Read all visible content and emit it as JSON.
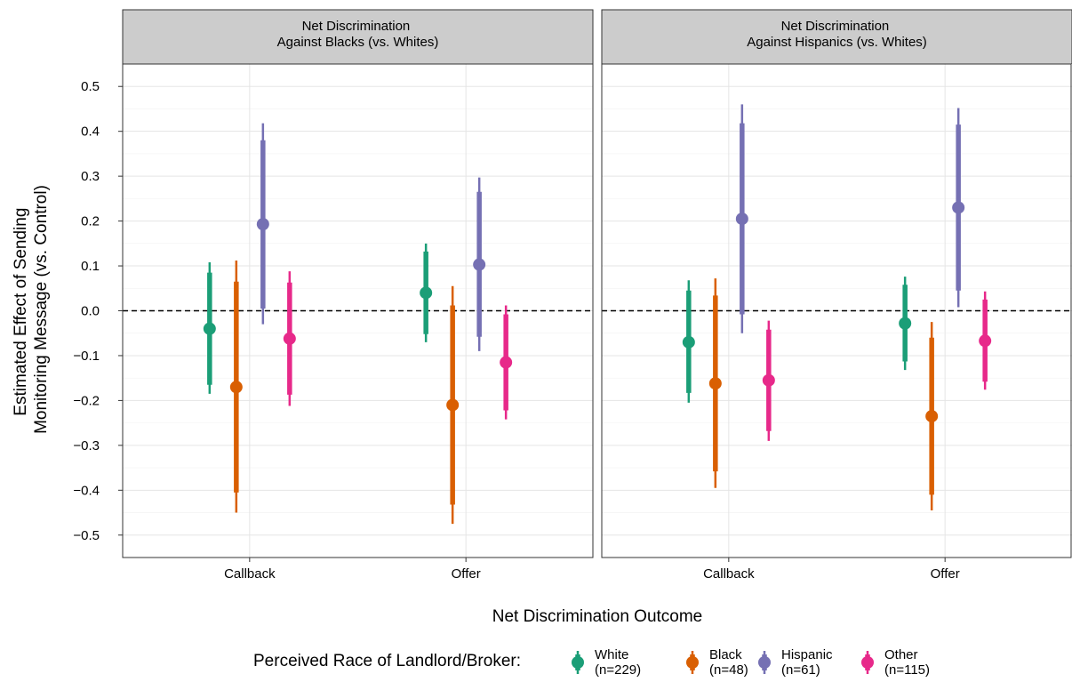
{
  "chart_data": {
    "type": "scatter",
    "ylabel_line1": "Estimated Effect of Sending",
    "ylabel_line2": "Monitoring Message (vs. Control)",
    "xlabel": "Net Discrimination Outcome",
    "ylim": [
      -0.55,
      0.55
    ],
    "yticks": [
      "0.5",
      "0.4",
      "0.3",
      "0.2",
      "0.1",
      "0.0",
      "−0.1",
      "−0.2",
      "−0.3",
      "−0.4",
      "−0.5"
    ],
    "ytick_values": [
      0.5,
      0.4,
      0.3,
      0.2,
      0.1,
      0.0,
      -0.1,
      -0.2,
      -0.3,
      -0.4,
      -0.5
    ],
    "categories": [
      "Callback",
      "Offer"
    ],
    "reference_line": 0,
    "grid": true,
    "legend": {
      "position": "bottom",
      "title": "Perceived Race of Landlord/Broker:",
      "items": [
        {
          "line1": "White",
          "line2": "(n=229)",
          "color": "#1b9e77"
        },
        {
          "line1": "Black",
          "line2": "(n=48)",
          "color": "#d95f02"
        },
        {
          "line1": "Hispanic",
          "line2": "(n=61)",
          "color": "#7570b3"
        },
        {
          "line1": "Other",
          "line2": "(n=115)",
          "color": "#e7298a"
        }
      ]
    },
    "panels": [
      {
        "title_line1": "Net Discrimination",
        "title_line2": "Against Blacks (vs. Whites)",
        "series": [
          {
            "color": "#1b9e77",
            "points": [
              {
                "category": "Callback",
                "estimate": -0.04,
                "ci90": [
                  -0.165,
                  0.085
                ],
                "ci95": [
                  -0.185,
                  0.108
                ]
              },
              {
                "category": "Offer",
                "estimate": 0.04,
                "ci90": [
                  -0.052,
                  0.132
                ],
                "ci95": [
                  -0.07,
                  0.15
                ]
              }
            ]
          },
          {
            "color": "#d95f02",
            "points": [
              {
                "category": "Callback",
                "estimate": -0.17,
                "ci90": [
                  -0.405,
                  0.065
                ],
                "ci95": [
                  -0.45,
                  0.112
                ]
              },
              {
                "category": "Offer",
                "estimate": -0.21,
                "ci90": [
                  -0.432,
                  0.012
                ],
                "ci95": [
                  -0.475,
                  0.055
                ]
              }
            ]
          },
          {
            "color": "#7570b3",
            "points": [
              {
                "category": "Callback",
                "estimate": 0.193,
                "ci90": [
                  0.005,
                  0.38
                ],
                "ci95": [
                  -0.03,
                  0.418
                ]
              },
              {
                "category": "Offer",
                "estimate": 0.103,
                "ci90": [
                  -0.058,
                  0.265
                ],
                "ci95": [
                  -0.09,
                  0.297
                ]
              }
            ]
          },
          {
            "color": "#e7298a",
            "points": [
              {
                "category": "Callback",
                "estimate": -0.062,
                "ci90": [
                  -0.187,
                  0.063
                ],
                "ci95": [
                  -0.212,
                  0.088
                ]
              },
              {
                "category": "Offer",
                "estimate": -0.115,
                "ci90": [
                  -0.222,
                  -0.008
                ],
                "ci95": [
                  -0.242,
                  0.012
                ]
              }
            ]
          }
        ]
      },
      {
        "title_line1": "Net Discrimination",
        "title_line2": "Against Hispanics (vs. Whites)",
        "series": [
          {
            "color": "#1b9e77",
            "points": [
              {
                "category": "Callback",
                "estimate": -0.07,
                "ci90": [
                  -0.183,
                  0.045
                ],
                "ci95": [
                  -0.205,
                  0.068
                ]
              },
              {
                "category": "Offer",
                "estimate": -0.028,
                "ci90": [
                  -0.113,
                  0.058
                ],
                "ci95": [
                  -0.132,
                  0.076
                ]
              }
            ]
          },
          {
            "color": "#d95f02",
            "points": [
              {
                "category": "Callback",
                "estimate": -0.162,
                "ci90": [
                  -0.358,
                  0.034
                ],
                "ci95": [
                  -0.395,
                  0.072
                ]
              },
              {
                "category": "Offer",
                "estimate": -0.235,
                "ci90": [
                  -0.41,
                  -0.06
                ],
                "ci95": [
                  -0.445,
                  -0.025
                ]
              }
            ]
          },
          {
            "color": "#7570b3",
            "points": [
              {
                "category": "Callback",
                "estimate": 0.205,
                "ci90": [
                  -0.008,
                  0.418
                ],
                "ci95": [
                  -0.05,
                  0.46
                ]
              },
              {
                "category": "Offer",
                "estimate": 0.23,
                "ci90": [
                  0.045,
                  0.415
                ],
                "ci95": [
                  0.008,
                  0.452
                ]
              }
            ]
          },
          {
            "color": "#e7298a",
            "points": [
              {
                "category": "Callback",
                "estimate": -0.155,
                "ci90": [
                  -0.268,
                  -0.042
                ],
                "ci95": [
                  -0.29,
                  -0.022
                ]
              },
              {
                "category": "Offer",
                "estimate": -0.067,
                "ci90": [
                  -0.158,
                  0.025
                ],
                "ci95": [
                  -0.176,
                  0.043
                ]
              }
            ]
          }
        ]
      }
    ]
  }
}
